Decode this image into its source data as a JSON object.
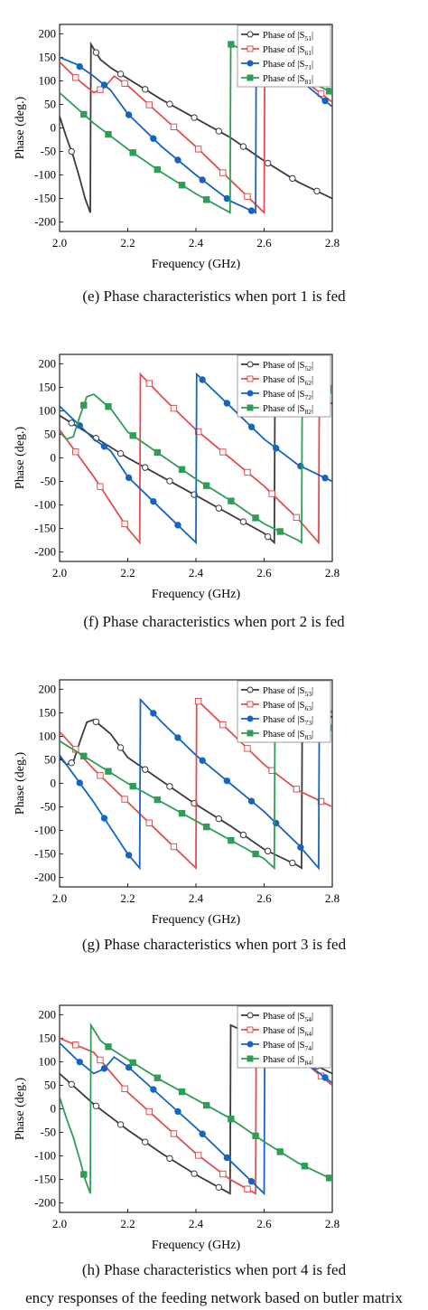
{
  "figure_caption": "ency responses of the feeding network based on butler matrix",
  "chart_data": [
    {
      "type": "line",
      "caption": "(e) Phase characteristics when port 1 is fed",
      "xlabel": "Frequency (GHz)",
      "ylabel": "Phase (deg.)",
      "xlim": [
        2.0,
        2.8
      ],
      "ylim": [
        -220,
        220
      ],
      "xticks": [
        "2.0",
        "2.2",
        "2.4",
        "2.6",
        "2.8"
      ],
      "yticks": [
        "200",
        "150",
        "100",
        "50",
        "0",
        "-50",
        "-100",
        "-150",
        "-200"
      ],
      "legend_position": "top-right",
      "series": [
        {
          "name": "Phase of |S51|",
          "sub": "51",
          "color": "#3b3b3b",
          "marker": "circle-open",
          "x": [
            2.0,
            2.02,
            2.04,
            2.06,
            2.075,
            2.09,
            2.092,
            2.12,
            2.15,
            2.2,
            2.3,
            2.4,
            2.5,
            2.6,
            2.7,
            2.8
          ],
          "y": [
            25,
            -20,
            -60,
            -110,
            -150,
            -180,
            178,
            145,
            128,
            105,
            60,
            20,
            -20,
            -70,
            -115,
            -150
          ]
        },
        {
          "name": "Phase of |S61|",
          "sub": "61",
          "color": "#e05050",
          "marker": "square-open",
          "x": [
            2.0,
            2.05,
            2.1,
            2.13,
            2.16,
            2.2,
            2.3,
            2.4,
            2.5,
            2.6,
            2.602,
            2.7,
            2.8
          ],
          "y": [
            140,
            105,
            75,
            85,
            110,
            90,
            25,
            -40,
            -110,
            -180,
            178,
            110,
            55
          ]
        },
        {
          "name": "Phase of |S71|",
          "sub": "71",
          "color": "#1565c0",
          "marker": "circle-filled",
          "x": [
            2.0,
            2.05,
            2.1,
            2.15,
            2.2,
            2.3,
            2.4,
            2.5,
            2.575,
            2.577,
            2.7,
            2.8
          ],
          "y": [
            150,
            135,
            110,
            80,
            30,
            -40,
            -100,
            -155,
            -180,
            178,
            105,
            45
          ]
        },
        {
          "name": "Phase of |S81|",
          "sub": "81",
          "color": "#2e9e57",
          "marker": "square-filled",
          "x": [
            2.0,
            2.1,
            2.2,
            2.3,
            2.4,
            2.5,
            2.502,
            2.6,
            2.7,
            2.8
          ],
          "y": [
            75,
            10,
            -45,
            -95,
            -140,
            -180,
            178,
            145,
            110,
            75
          ]
        }
      ]
    },
    {
      "type": "line",
      "caption": "(f) Phase characteristics when port 2 is fed",
      "xlabel": "Frequency (GHz)",
      "ylabel": "Phase (deg.)",
      "xlim": [
        2.0,
        2.8
      ],
      "ylim": [
        -220,
        220
      ],
      "xticks": [
        "2.0",
        "2.2",
        "2.4",
        "2.6",
        "2.8"
      ],
      "yticks": [
        "200",
        "150",
        "100",
        "50",
        "0",
        "-50",
        "-100",
        "-150",
        "-200"
      ],
      "legend_position": "top-right",
      "series": [
        {
          "name": "Phase of |S52|",
          "sub": "52",
          "color": "#3b3b3b",
          "marker": "circle-open",
          "x": [
            2.0,
            2.1,
            2.2,
            2.3,
            2.4,
            2.5,
            2.6,
            2.63,
            2.632,
            2.7,
            2.8
          ],
          "y": [
            90,
            45,
            0,
            -40,
            -80,
            -120,
            -160,
            -180,
            178,
            150,
            115
          ]
        },
        {
          "name": "Phase of |S62|",
          "sub": "62",
          "color": "#e05050",
          "marker": "square-open",
          "x": [
            2.0,
            2.05,
            2.1,
            2.15,
            2.2,
            2.235,
            2.237,
            2.3,
            2.4,
            2.5,
            2.6,
            2.7,
            2.76,
            2.762,
            2.8
          ],
          "y": [
            60,
            10,
            -40,
            -95,
            -150,
            -180,
            178,
            130,
            60,
            0,
            -60,
            -130,
            -180,
            178,
            150
          ]
        },
        {
          "name": "Phase of |S72|",
          "sub": "72",
          "color": "#1565c0",
          "marker": "circle-filled",
          "x": [
            2.0,
            2.1,
            2.15,
            2.2,
            2.3,
            2.4,
            2.402,
            2.5,
            2.6,
            2.7,
            2.8
          ],
          "y": [
            110,
            40,
            15,
            -40,
            -110,
            -180,
            178,
            110,
            40,
            -15,
            -50
          ]
        },
        {
          "name": "Phase of |S82|",
          "sub": "82",
          "color": "#2e9e57",
          "marker": "square-filled",
          "x": [
            2.0,
            2.02,
            2.04,
            2.06,
            2.08,
            2.1,
            2.15,
            2.2,
            2.3,
            2.4,
            2.5,
            2.6,
            2.7,
            2.71,
            2.712,
            2.8
          ],
          "y": [
            55,
            40,
            45,
            90,
            130,
            135,
            105,
            55,
            5,
            -45,
            -90,
            -140,
            -175,
            -180,
            178,
            140
          ]
        }
      ]
    },
    {
      "type": "line",
      "caption": "(g) Phase characteristics when port 3 is fed",
      "xlabel": "Frequency (GHz)",
      "ylabel": "Phase (deg.)",
      "xlim": [
        2.0,
        2.8
      ],
      "ylim": [
        -220,
        220
      ],
      "xticks": [
        "2.0",
        "2.2",
        "2.4",
        "2.6",
        "2.8"
      ],
      "yticks": [
        "200",
        "150",
        "100",
        "50",
        "0",
        "-50",
        "-100",
        "-150",
        "-200"
      ],
      "legend_position": "top-right",
      "series": [
        {
          "name": "Phase of |S53|",
          "sub": "53",
          "color": "#3b3b3b",
          "marker": "circle-open",
          "x": [
            2.0,
            2.02,
            2.04,
            2.06,
            2.08,
            2.1,
            2.15,
            2.2,
            2.3,
            2.4,
            2.5,
            2.6,
            2.7,
            2.71,
            2.712,
            2.8
          ],
          "y": [
            55,
            40,
            45,
            90,
            130,
            135,
            105,
            55,
            5,
            -45,
            -90,
            -140,
            -175,
            -180,
            178,
            140
          ]
        },
        {
          "name": "Phase of |S63|",
          "sub": "63",
          "color": "#e05050",
          "marker": "square-open",
          "x": [
            2.0,
            2.1,
            2.2,
            2.3,
            2.4,
            2.402,
            2.5,
            2.6,
            2.7,
            2.8
          ],
          "y": [
            110,
            30,
            -40,
            -110,
            -180,
            178,
            110,
            40,
            -15,
            -50
          ]
        },
        {
          "name": "Phase of |S73|",
          "sub": "73",
          "color": "#1565c0",
          "marker": "circle-filled",
          "x": [
            2.0,
            2.05,
            2.1,
            2.15,
            2.2,
            2.235,
            2.237,
            2.3,
            2.4,
            2.5,
            2.6,
            2.7,
            2.76,
            2.762,
            2.8
          ],
          "y": [
            60,
            10,
            -40,
            -95,
            -150,
            -180,
            178,
            130,
            60,
            0,
            -60,
            -130,
            -180,
            178,
            150
          ]
        },
        {
          "name": "Phase of |S83|",
          "sub": "83",
          "color": "#2e9e57",
          "marker": "square-filled",
          "x": [
            2.0,
            2.1,
            2.2,
            2.3,
            2.4,
            2.5,
            2.6,
            2.63,
            2.632,
            2.7,
            2.8
          ],
          "y": [
            90,
            45,
            0,
            -40,
            -80,
            -120,
            -160,
            -180,
            178,
            150,
            115
          ]
        }
      ]
    },
    {
      "type": "line",
      "caption": "(h) Phase characteristics when port 4 is fed",
      "xlabel": "Frequency (GHz)",
      "ylabel": "Phase (deg.)",
      "xlim": [
        2.0,
        2.8
      ],
      "ylim": [
        -220,
        220
      ],
      "xticks": [
        "2.0",
        "2.2",
        "2.4",
        "2.6",
        "2.8"
      ],
      "yticks": [
        "200",
        "150",
        "100",
        "50",
        "0",
        "-50",
        "-100",
        "-150",
        "-200"
      ],
      "legend_position": "top-right",
      "series": [
        {
          "name": "Phase of |S54|",
          "sub": "54",
          "color": "#3b3b3b",
          "marker": "circle-open",
          "x": [
            2.0,
            2.1,
            2.2,
            2.3,
            2.4,
            2.5,
            2.502,
            2.6,
            2.7,
            2.8
          ],
          "y": [
            75,
            10,
            -45,
            -95,
            -140,
            -180,
            178,
            145,
            110,
            75
          ]
        },
        {
          "name": "Phase of |S64|",
          "sub": "64",
          "color": "#e05050",
          "marker": "square-open",
          "x": [
            2.0,
            2.1,
            2.2,
            2.3,
            2.4,
            2.5,
            2.575,
            2.577,
            2.7,
            2.8
          ],
          "y": [
            150,
            120,
            35,
            -30,
            -95,
            -150,
            -180,
            178,
            110,
            50
          ]
        },
        {
          "name": "Phase of |S74|",
          "sub": "74",
          "color": "#1565c0",
          "marker": "circle-filled",
          "x": [
            2.0,
            2.05,
            2.1,
            2.13,
            2.16,
            2.2,
            2.3,
            2.4,
            2.5,
            2.6,
            2.602,
            2.7,
            2.8
          ],
          "y": [
            140,
            105,
            75,
            85,
            110,
            90,
            25,
            -40,
            -110,
            -180,
            178,
            110,
            55
          ]
        },
        {
          "name": "Phase of |S84|",
          "sub": "84",
          "color": "#2e9e57",
          "marker": "square-filled",
          "x": [
            2.0,
            2.02,
            2.04,
            2.06,
            2.075,
            2.09,
            2.092,
            2.12,
            2.15,
            2.2,
            2.3,
            2.4,
            2.5,
            2.6,
            2.7,
            2.8
          ],
          "y": [
            25,
            -20,
            -60,
            -110,
            -150,
            -180,
            178,
            145,
            128,
            105,
            60,
            20,
            -20,
            -70,
            -115,
            -150
          ]
        }
      ]
    }
  ]
}
